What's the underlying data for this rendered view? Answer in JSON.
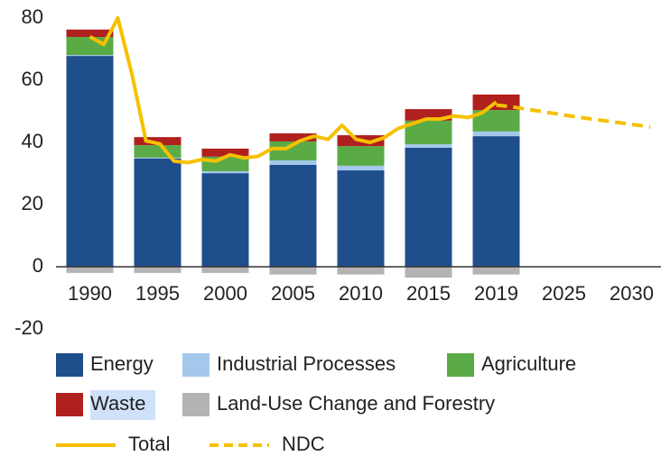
{
  "chart_data": {
    "type": "bar",
    "stacked": true,
    "categories": [
      "1990",
      "1995",
      "2000",
      "2005",
      "2010",
      "2015",
      "2019",
      "2025",
      "2030"
    ],
    "series": [
      {
        "name": "Energy",
        "color": "#1f4e8c",
        "values": [
          67.8,
          34.8,
          30.1,
          32.8,
          31.0,
          38.3,
          42.0,
          null,
          null
        ]
      },
      {
        "name": "Industrial Processes",
        "color": "#a4c8ec",
        "values": [
          0.3,
          0.3,
          0.6,
          1.4,
          1.5,
          1.1,
          1.5,
          null,
          null
        ]
      },
      {
        "name": "Agriculture",
        "color": "#5aab46",
        "values": [
          5.8,
          4.0,
          4.7,
          6.1,
          6.3,
          7.6,
          6.9,
          null,
          null
        ]
      },
      {
        "name": "Waste",
        "color": "#b0201f",
        "values": [
          2.4,
          2.6,
          2.6,
          2.6,
          3.5,
          3.7,
          5.0,
          null,
          null
        ]
      },
      {
        "name": "Land-Use Change and Forestry",
        "color": "#b3b3b3",
        "values": [
          -2.0,
          -2.0,
          -2.0,
          -2.5,
          -2.5,
          -3.5,
          -2.5,
          null,
          null
        ]
      }
    ],
    "lines": [
      {
        "name": "Total",
        "color": "#f5c100",
        "dashed": false,
        "x": [
          1990,
          1991,
          1992,
          1993,
          1994,
          1995,
          1996,
          1997,
          1998,
          1999,
          2000,
          2001,
          2002,
          2003,
          2004,
          2005,
          2006,
          2007,
          2008,
          2009,
          2010,
          2011,
          2012,
          2013,
          2014,
          2015,
          2016,
          2017,
          2018,
          2019
        ],
        "values": [
          74,
          71.5,
          80,
          62,
          40.5,
          39.5,
          34,
          33.5,
          34.5,
          34,
          36,
          35,
          35.5,
          38,
          38,
          40.5,
          42,
          41,
          45.5,
          41,
          40,
          41.5,
          44.5,
          46,
          47.5,
          47.5,
          48.5,
          48,
          49.5,
          53
        ]
      },
      {
        "name": "NDC",
        "color": "#f5c100",
        "dashed": true,
        "x": [
          2019,
          2020,
          2025,
          2030
        ],
        "values": [
          52,
          51.5,
          48,
          45
        ]
      }
    ],
    "ylim": [
      -20,
      80
    ],
    "yticks": [
      -20,
      0,
      20,
      40,
      60,
      80
    ]
  }
}
